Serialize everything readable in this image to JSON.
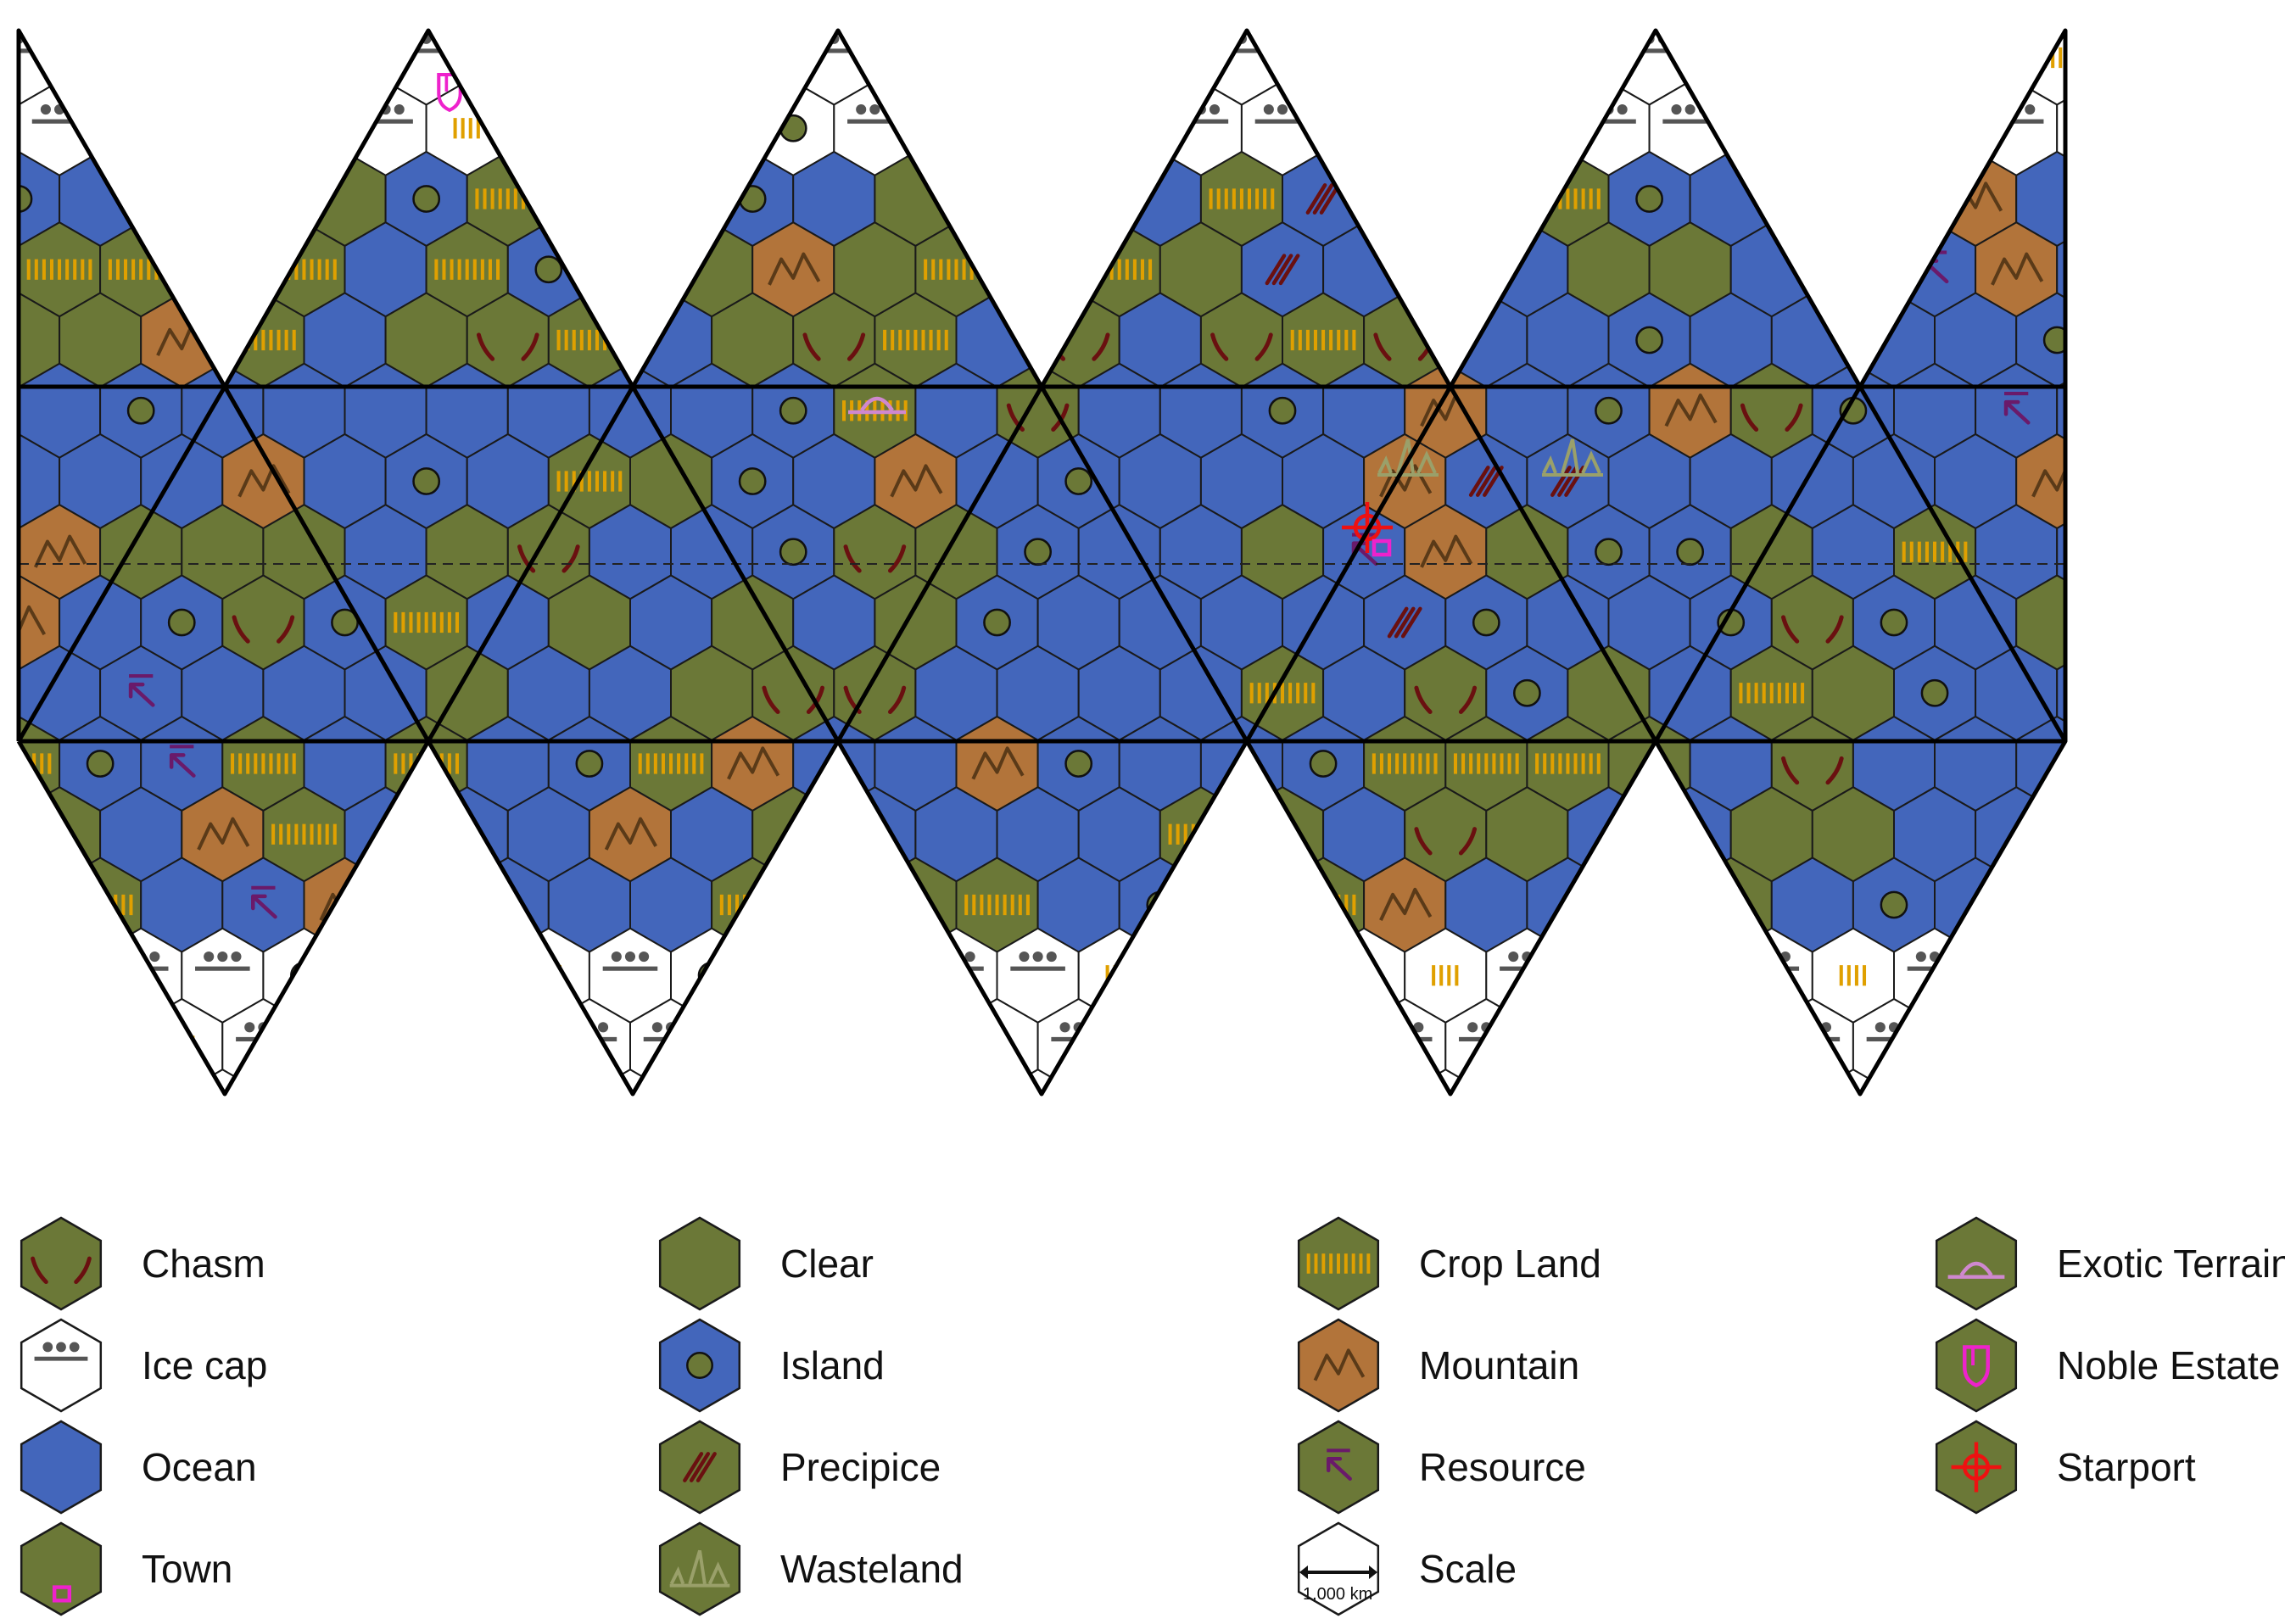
{
  "colors": {
    "land": "#6b7837",
    "ocean": "#4366bb",
    "ice": "#ffffff",
    "mountain": "#b2743a",
    "hex_border": "#1a1a1a",
    "frame": "#000000",
    "crop": "#e0a000",
    "chasm": "#6a1010",
    "mountain_line": "#5a3a18",
    "resource": "#6a1a6a",
    "exotic": "#cf88cf",
    "noble": "#ee22cc",
    "starport": "#ee1111",
    "wasteland": "#9aa06a",
    "ice_dots": "#555555"
  },
  "legend": {
    "items": [
      {
        "key": "chasm",
        "label": "Chasm",
        "icon": "chasm-icon"
      },
      {
        "key": "clear",
        "label": "Clear",
        "icon": "clear-icon"
      },
      {
        "key": "crop",
        "label": "Crop Land",
        "icon": "crop-land-icon"
      },
      {
        "key": "exotic",
        "label": "Exotic Terrain",
        "icon": "exotic-terrain-icon"
      },
      {
        "key": "ice",
        "label": "Ice cap",
        "icon": "ice-cap-icon"
      },
      {
        "key": "island",
        "label": "Island",
        "icon": "island-icon"
      },
      {
        "key": "mountain",
        "label": "Mountain",
        "icon": "mountain-icon"
      },
      {
        "key": "noble",
        "label": "Noble Estate",
        "icon": "noble-estate-icon"
      },
      {
        "key": "ocean",
        "label": "Ocean",
        "icon": "ocean-icon"
      },
      {
        "key": "precipice",
        "label": "Precipice",
        "icon": "precipice-icon"
      },
      {
        "key": "resource",
        "label": "Resource",
        "icon": "resource-icon"
      },
      {
        "key": "starport",
        "label": "Starport",
        "icon": "starport-icon"
      },
      {
        "key": "town",
        "label": "Town",
        "icon": "town-icon"
      },
      {
        "key": "wasteland",
        "label": "Wasteland",
        "icon": "wasteland-icon"
      },
      {
        "key": "scale",
        "label": "Scale",
        "icon": "scale-icon"
      }
    ],
    "scale_text": "1,000 km"
  }
}
